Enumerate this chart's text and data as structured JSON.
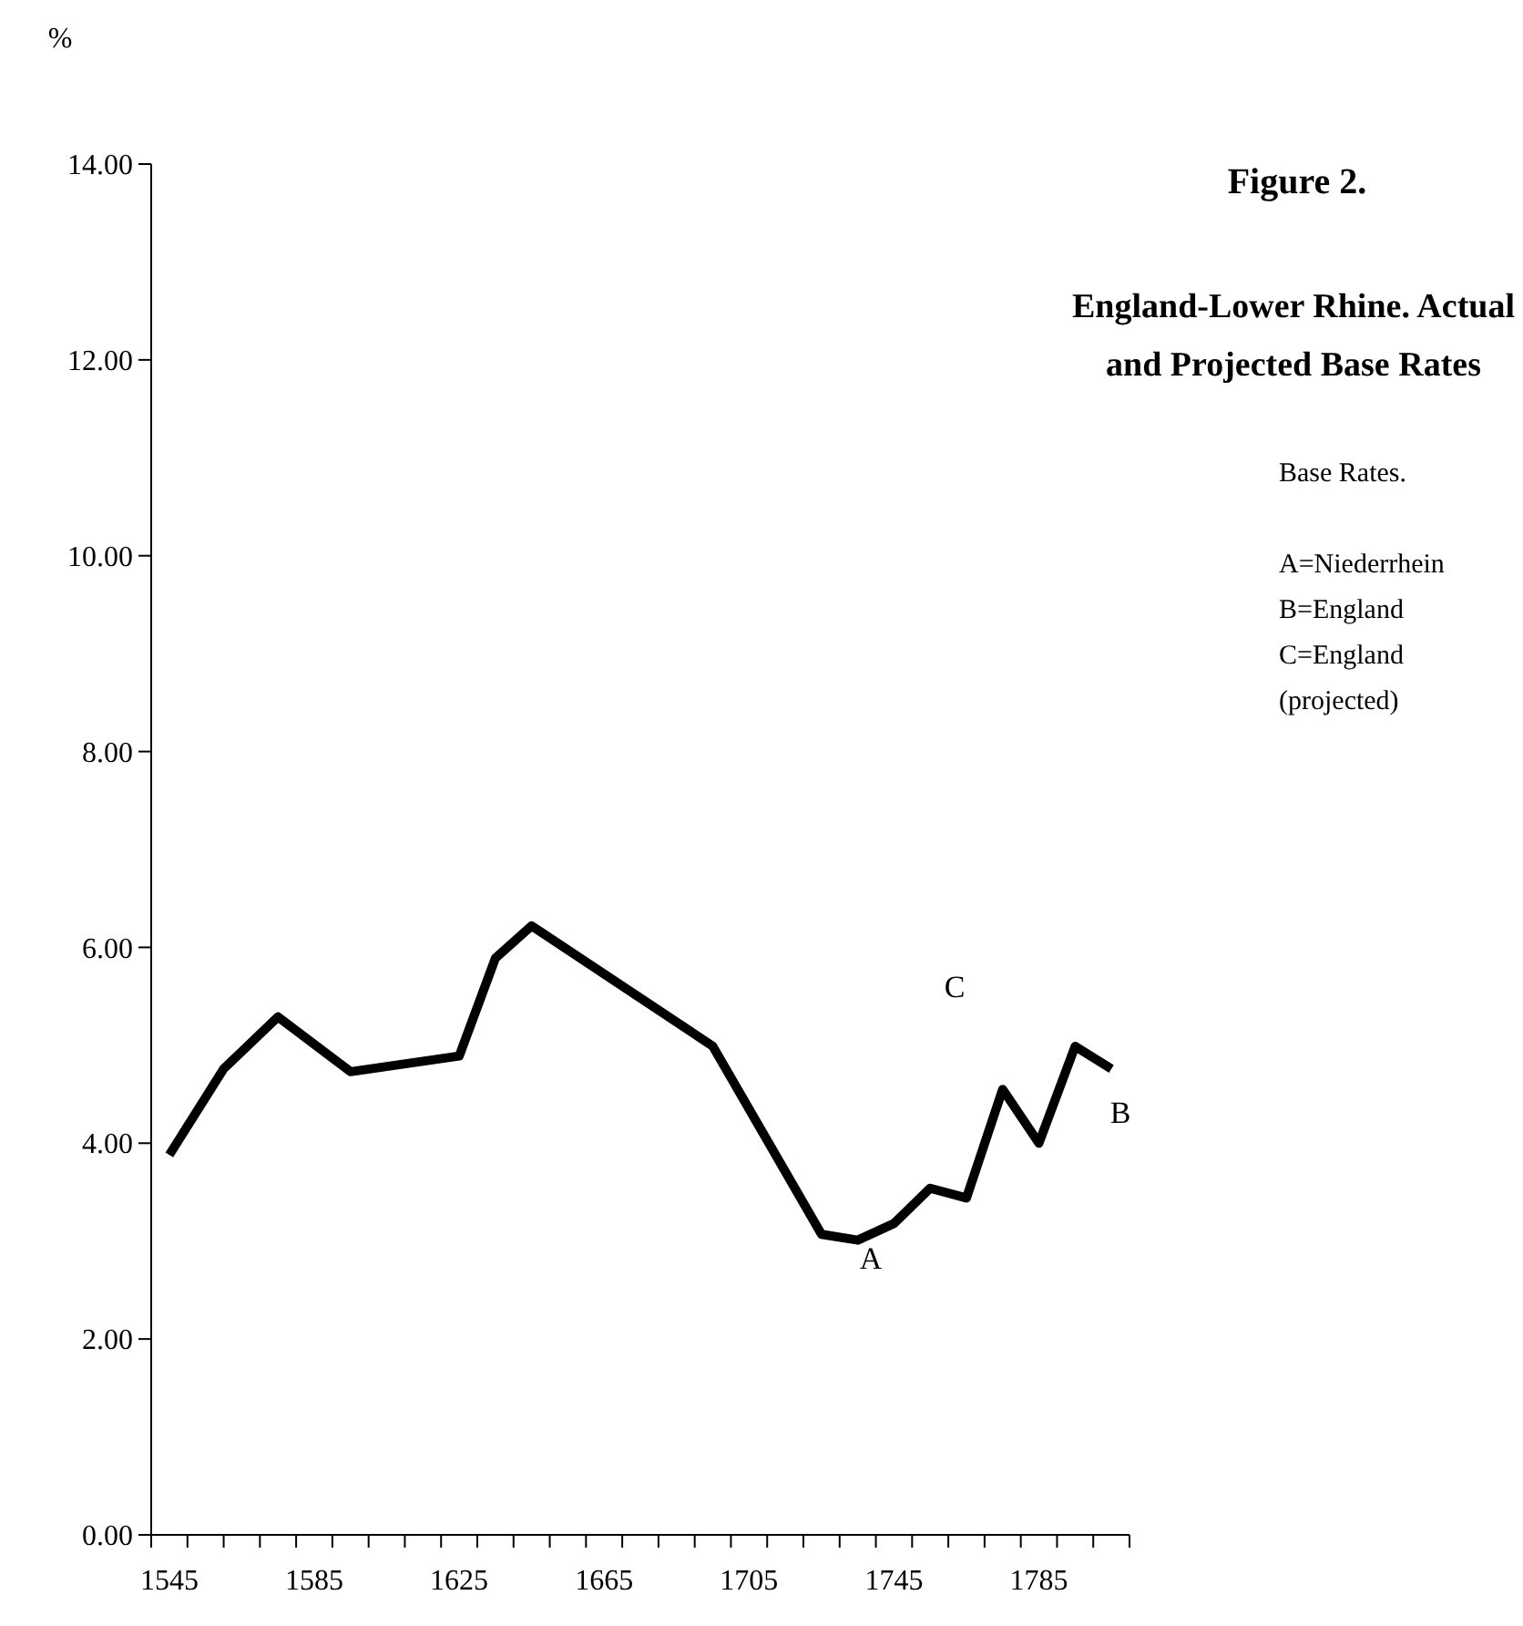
{
  "chart_data": {
    "type": "line",
    "title": "Figure 2.",
    "subtitle": "England-Lower Rhine. Actual and Projected Base Rates",
    "ylabel": "%",
    "x": [
      1545,
      1560,
      1575,
      1595,
      1625,
      1635,
      1645,
      1695,
      1725,
      1735,
      1745,
      1755,
      1765,
      1775,
      1785,
      1795,
      1805
    ],
    "series": [
      {
        "color": "#000000",
        "values": [
          3.88,
          4.76,
          5.29,
          4.73,
          4.89,
          5.89,
          6.22,
          4.99,
          3.07,
          3.01,
          3.18,
          3.54,
          3.44,
          4.55,
          4.0,
          4.99,
          4.76
        ]
      }
    ],
    "xlim": [
      1540,
      1810
    ],
    "xticks": [
      {
        "value": 1540,
        "label": null
      },
      {
        "value": 1545,
        "label": "1545"
      },
      {
        "value": 1550,
        "label": null
      },
      {
        "value": 1560,
        "label": null
      },
      {
        "value": 1570,
        "label": null
      },
      {
        "value": 1580,
        "label": null
      },
      {
        "value": 1585,
        "label": "1585"
      },
      {
        "value": 1590,
        "label": null
      },
      {
        "value": 1600,
        "label": null
      },
      {
        "value": 1610,
        "label": null
      },
      {
        "value": 1620,
        "label": null
      },
      {
        "value": 1625,
        "label": "1625"
      },
      {
        "value": 1630,
        "label": null
      },
      {
        "value": 1640,
        "label": null
      },
      {
        "value": 1650,
        "label": null
      },
      {
        "value": 1660,
        "label": null
      },
      {
        "value": 1665,
        "label": "1665"
      },
      {
        "value": 1670,
        "label": null
      },
      {
        "value": 1680,
        "label": null
      },
      {
        "value": 1690,
        "label": null
      },
      {
        "value": 1700,
        "label": null
      },
      {
        "value": 1705,
        "label": "1705"
      },
      {
        "value": 1710,
        "label": null
      },
      {
        "value": 1720,
        "label": null
      },
      {
        "value": 1730,
        "label": null
      },
      {
        "value": 1740,
        "label": null
      },
      {
        "value": 1745,
        "label": "1745"
      },
      {
        "value": 1750,
        "label": null
      },
      {
        "value": 1760,
        "label": null
      },
      {
        "value": 1770,
        "label": null
      },
      {
        "value": 1780,
        "label": null
      },
      {
        "value": 1785,
        "label": "1785"
      },
      {
        "value": 1790,
        "label": null
      },
      {
        "value": 1800,
        "label": null
      },
      {
        "value": 1810,
        "label": null
      }
    ],
    "ylim": [
      0,
      14
    ],
    "yticks": [
      {
        "value": 0,
        "label": "0.00"
      },
      {
        "value": 2,
        "label": "2.00"
      },
      {
        "value": 4,
        "label": "4.00"
      },
      {
        "value": 6,
        "label": "6.00"
      },
      {
        "value": 8,
        "label": "8.00"
      },
      {
        "value": 10,
        "label": "10.00"
      },
      {
        "value": 12,
        "label": "12.00"
      },
      {
        "value": 14,
        "label": "14.00"
      }
    ],
    "grid": false,
    "marker": "none",
    "line_style": "solid",
    "annotations": [
      "A",
      "C",
      "B",
      "Base Rates.",
      "A=Niederrhein",
      "B=England",
      "C=England",
      "(projected)"
    ]
  }
}
